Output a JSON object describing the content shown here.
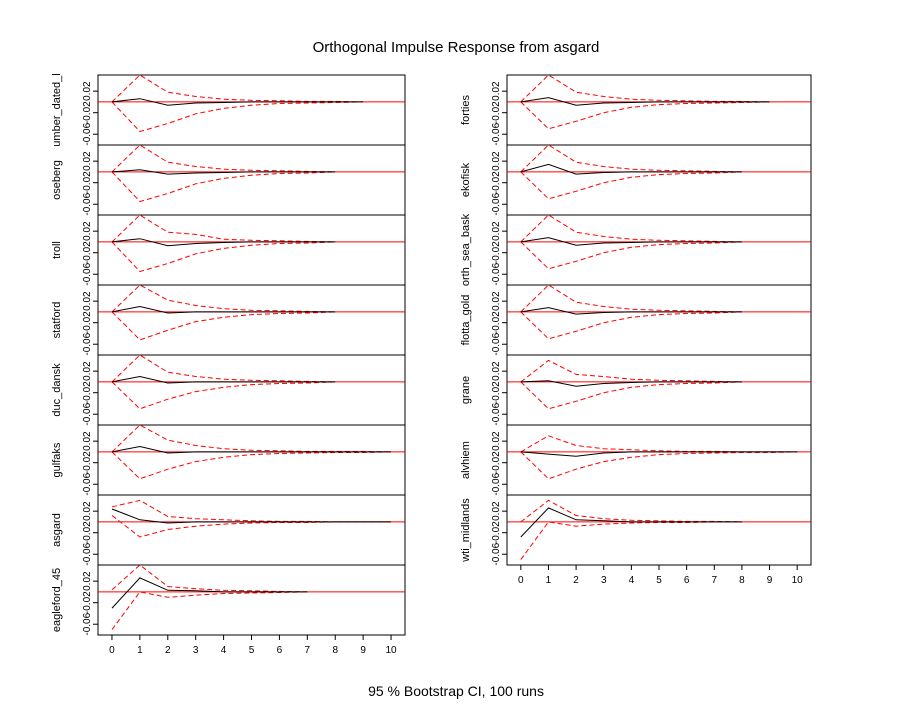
{
  "title": "Orthogonal Impulse Response from asgard",
  "footer": "95 % Bootstrap CI,  100 runs",
  "colors": {
    "response": "#000000",
    "ci": "#ff0000",
    "zero_line": "#ff0000"
  },
  "chart_data": {
    "type": "line",
    "impulse": "asgard",
    "x_ticks": [
      0,
      1,
      2,
      3,
      4,
      5,
      6,
      7,
      8,
      9,
      10
    ],
    "ylim": [
      -0.08,
      0.05
    ],
    "y_ticks": [
      "0.02",
      "-0.02",
      "-0.06"
    ],
    "y_ticks_low": [
      "0.02",
      "-0.02",
      "-0.06"
    ],
    "grid": false,
    "ci_level": "95 %",
    "bootstrap_runs": 100,
    "columns": [
      {
        "panels": [
          {
            "name": "umber_dated_l",
            "x": [
              0,
              1,
              2,
              3,
              4,
              5,
              6,
              7,
              8,
              9
            ],
            "response": [
              0,
              0.006,
              -0.006,
              -0.002,
              -0.001,
              0,
              0,
              0,
              0,
              0
            ],
            "upper": [
              0,
              0.05,
              0.018,
              0.01,
              0.005,
              0.003,
              0.002,
              0.001,
              0.001,
              0
            ],
            "lower": [
              0,
              -0.055,
              -0.04,
              -0.022,
              -0.012,
              -0.006,
              -0.003,
              -0.002,
              -0.001,
              0
            ]
          },
          {
            "name": "oseberg",
            "x": [
              0,
              1,
              2,
              3,
              4,
              5,
              6,
              7,
              8
            ],
            "response": [
              0,
              0.004,
              -0.004,
              -0.002,
              -0.001,
              0,
              0,
              0,
              0
            ],
            "upper": [
              0,
              0.05,
              0.018,
              0.01,
              0.005,
              0.003,
              0.002,
              0.001,
              0
            ],
            "lower": [
              0,
              -0.055,
              -0.04,
              -0.022,
              -0.012,
              -0.006,
              -0.003,
              -0.002,
              0
            ]
          },
          {
            "name": "troll",
            "x": [
              0,
              1,
              2,
              3,
              4,
              5,
              6,
              7,
              8
            ],
            "response": [
              0,
              0.006,
              -0.007,
              -0.003,
              -0.001,
              0,
              0,
              0,
              0
            ],
            "upper": [
              0,
              0.05,
              0.018,
              0.014,
              0.005,
              0.003,
              0.002,
              0.001,
              0
            ],
            "lower": [
              0,
              -0.055,
              -0.04,
              -0.022,
              -0.012,
              -0.006,
              -0.003,
              -0.002,
              0
            ]
          },
          {
            "name": "statford",
            "x": [
              0,
              1,
              2,
              3,
              4,
              5,
              6,
              7,
              8
            ],
            "response": [
              0,
              0.01,
              -0.002,
              0,
              0,
              0,
              0,
              0,
              0
            ],
            "upper": [
              0,
              0.05,
              0.022,
              0.012,
              0.006,
              0.003,
              0.002,
              0.001,
              0
            ],
            "lower": [
              0,
              -0.052,
              -0.034,
              -0.018,
              -0.01,
              -0.005,
              -0.003,
              -0.002,
              0
            ]
          },
          {
            "name": "duc_dansk",
            "x": [
              0,
              1,
              2,
              3,
              4,
              5,
              6,
              7,
              8
            ],
            "response": [
              0,
              0.01,
              -0.002,
              0,
              0,
              0,
              0,
              0,
              0
            ],
            "upper": [
              0,
              0.05,
              0.018,
              0.01,
              0.005,
              0.003,
              0.002,
              0.001,
              0
            ],
            "lower": [
              0,
              -0.05,
              -0.032,
              -0.018,
              -0.01,
              -0.005,
              -0.003,
              -0.002,
              0
            ]
          },
          {
            "name": "gulfaks",
            "x": [
              0,
              1,
              2,
              3,
              4,
              5,
              6,
              7,
              8,
              9,
              10
            ],
            "response": [
              0,
              0.01,
              -0.002,
              0,
              0,
              0,
              0,
              0,
              0,
              0,
              0
            ],
            "upper": [
              0,
              0.05,
              0.022,
              0.012,
              0.006,
              0.003,
              0.002,
              0.001,
              0.001,
              0.001,
              0
            ],
            "lower": [
              0,
              -0.05,
              -0.032,
              -0.018,
              -0.01,
              -0.005,
              -0.003,
              -0.002,
              -0.001,
              -0.001,
              0
            ]
          },
          {
            "name": "asgard",
            "x": [
              0,
              1,
              2,
              3,
              4,
              5,
              6,
              7,
              8,
              9,
              10
            ],
            "response": [
              0.024,
              0.004,
              -0.002,
              0,
              0,
              0,
              0,
              0,
              0,
              0,
              0
            ],
            "upper": [
              0.028,
              0.04,
              0.01,
              0.006,
              0.004,
              0.002,
              0.001,
              0.001,
              0,
              0,
              0
            ],
            "lower": [
              0.012,
              -0.028,
              -0.014,
              -0.008,
              -0.004,
              -0.002,
              -0.001,
              -0.001,
              0,
              0,
              0
            ]
          },
          {
            "name": "eagleford_45",
            "x": [
              0,
              1,
              2,
              3,
              4,
              5,
              6,
              7
            ],
            "response": [
              -0.03,
              0.026,
              0.003,
              0.002,
              0,
              0,
              0,
              0
            ],
            "upper": [
              0.004,
              0.05,
              0.01,
              0.006,
              0.003,
              0.002,
              0.001,
              0
            ],
            "lower": [
              -0.07,
              0,
              -0.01,
              -0.006,
              -0.003,
              -0.002,
              -0.001,
              0
            ]
          }
        ]
      },
      {
        "panels": [
          {
            "name": "forties",
            "x": [
              0,
              1,
              2,
              3,
              4,
              5,
              6,
              7,
              8,
              9
            ],
            "response": [
              0,
              0.008,
              -0.006,
              -0.002,
              -0.001,
              0,
              0,
              0,
              0,
              0
            ],
            "upper": [
              0,
              0.05,
              0.018,
              0.01,
              0.005,
              0.003,
              0.002,
              0.001,
              0.001,
              0
            ],
            "lower": [
              0,
              -0.05,
              -0.036,
              -0.02,
              -0.01,
              -0.005,
              -0.003,
              -0.002,
              -0.001,
              0
            ]
          },
          {
            "name": "ekofisk",
            "x": [
              0,
              1,
              2,
              3,
              4,
              5,
              6,
              7,
              8
            ],
            "response": [
              0,
              0.014,
              -0.004,
              -0.001,
              0,
              0,
              0,
              0,
              0
            ],
            "upper": [
              0,
              0.05,
              0.018,
              0.01,
              0.005,
              0.003,
              0.002,
              0.001,
              0
            ],
            "lower": [
              0,
              -0.05,
              -0.036,
              -0.02,
              -0.01,
              -0.005,
              -0.003,
              -0.002,
              0
            ]
          },
          {
            "name": "orth_sea_bask",
            "x": [
              0,
              1,
              2,
              3,
              4,
              5,
              6,
              7,
              8
            ],
            "response": [
              0,
              0.008,
              -0.006,
              -0.002,
              -0.001,
              0,
              0,
              0,
              0
            ],
            "upper": [
              0,
              0.05,
              0.018,
              0.01,
              0.005,
              0.003,
              0.002,
              0.001,
              0
            ],
            "lower": [
              0,
              -0.05,
              -0.036,
              -0.02,
              -0.01,
              -0.005,
              -0.003,
              -0.002,
              0
            ]
          },
          {
            "name": "flotta_gold",
            "x": [
              0,
              1,
              2,
              3,
              4,
              5,
              6,
              7,
              8
            ],
            "response": [
              0,
              0.008,
              -0.004,
              -0.001,
              0,
              0,
              0,
              0,
              0
            ],
            "upper": [
              0,
              0.05,
              0.018,
              0.01,
              0.005,
              0.003,
              0.002,
              0.001,
              0
            ],
            "lower": [
              0,
              -0.05,
              -0.036,
              -0.02,
              -0.01,
              -0.005,
              -0.003,
              -0.002,
              0
            ]
          },
          {
            "name": "grane",
            "x": [
              0,
              1,
              2,
              3,
              4,
              5,
              6,
              7,
              8
            ],
            "response": [
              0,
              0.002,
              -0.008,
              -0.003,
              -0.001,
              0,
              0,
              0,
              0
            ],
            "upper": [
              0,
              0.04,
              0.014,
              0.01,
              0.005,
              0.003,
              0.002,
              0.001,
              0
            ],
            "lower": [
              0,
              -0.05,
              -0.036,
              -0.02,
              -0.01,
              -0.005,
              -0.003,
              -0.002,
              0
            ]
          },
          {
            "name": "alvhiem",
            "x": [
              0,
              1,
              2,
              3,
              4,
              5,
              6,
              7,
              8,
              9,
              10
            ],
            "response": [
              0,
              -0.004,
              -0.008,
              -0.002,
              0,
              0,
              0,
              0,
              0,
              0,
              0
            ],
            "upper": [
              0,
              0.03,
              0.012,
              0.006,
              0.004,
              0.002,
              0.001,
              0.001,
              0,
              0,
              0
            ],
            "lower": [
              0,
              -0.05,
              -0.032,
              -0.018,
              -0.01,
              -0.005,
              -0.003,
              -0.002,
              -0.001,
              -0.001,
              0
            ]
          },
          {
            "name": "wti_midlands",
            "x": [
              0,
              1,
              2,
              3,
              4,
              5,
              6,
              7,
              8
            ],
            "response": [
              -0.028,
              0.026,
              0.004,
              0.002,
              0,
              0,
              0,
              0,
              0
            ],
            "upper": [
              0,
              0.04,
              0.012,
              0.006,
              0.003,
              0.002,
              0.001,
              0.001,
              0
            ],
            "lower": [
              -0.07,
              0,
              -0.008,
              -0.004,
              -0.002,
              -0.001,
              -0.001,
              0,
              0
            ]
          }
        ]
      }
    ]
  }
}
